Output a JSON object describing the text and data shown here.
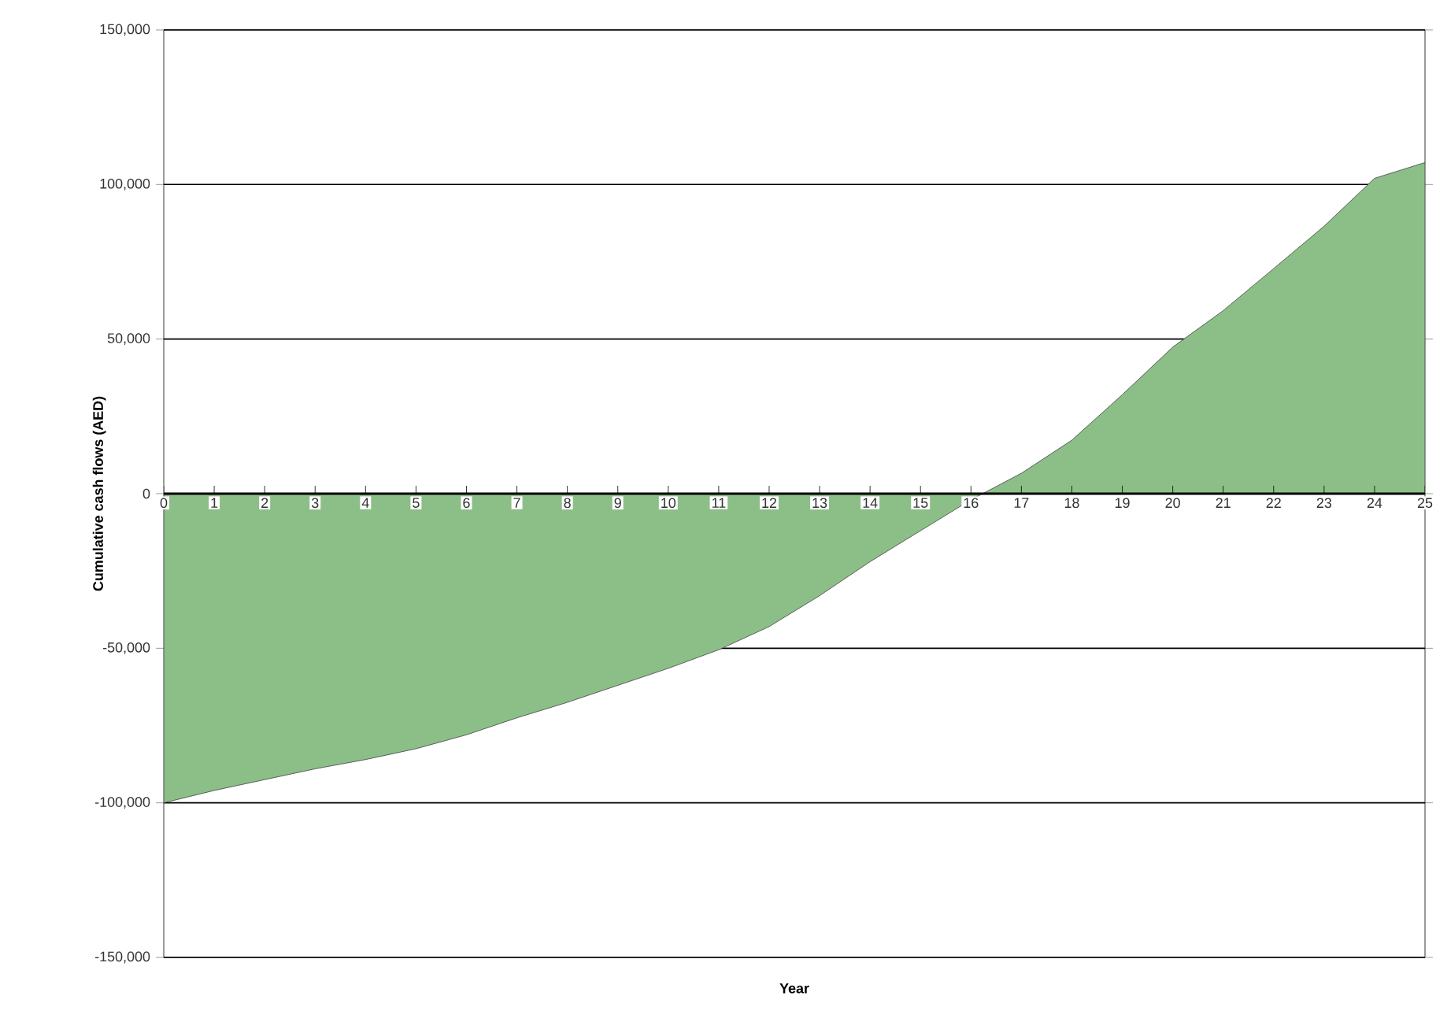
{
  "chart_data": {
    "type": "area",
    "xlabel": "Year",
    "ylabel": "Cumulative cash flows (AED)",
    "x": [
      0,
      1,
      2,
      3,
      4,
      5,
      6,
      7,
      8,
      9,
      10,
      11,
      12,
      13,
      14,
      15,
      16,
      17,
      18,
      19,
      20,
      21,
      22,
      23,
      24,
      25
    ],
    "series": [
      {
        "color": "#8cbf88",
        "values": [
          -100000,
          -96000,
          -92500,
          -89000,
          -86000,
          -82500,
          -78000,
          -72500,
          -67500,
          -62000,
          -56500,
          -50500,
          -43000,
          -33000,
          -22000,
          -12000,
          -2000,
          6600,
          17300,
          32000,
          47400,
          59200,
          72800,
          86500,
          102000,
          107100
        ]
      }
    ],
    "xlim": [
      0,
      25
    ],
    "ylim": [
      -150000,
      150000
    ],
    "xticks": [
      0,
      1,
      2,
      3,
      4,
      5,
      6,
      7,
      8,
      9,
      10,
      11,
      12,
      13,
      14,
      15,
      16,
      17,
      18,
      19,
      20,
      21,
      22,
      23,
      24,
      25
    ],
    "yticks": [
      {
        "value": -150000,
        "label": "-150,000"
      },
      {
        "value": -100000,
        "label": "-100,000"
      },
      {
        "value": -50000,
        "label": "-50,000"
      },
      0,
      {
        "value": 50000,
        "label": "50,000"
      },
      {
        "value": 100000,
        "label": "100,000"
      },
      {
        "value": 150000,
        "label": "150,000"
      }
    ],
    "grid": "y"
  }
}
